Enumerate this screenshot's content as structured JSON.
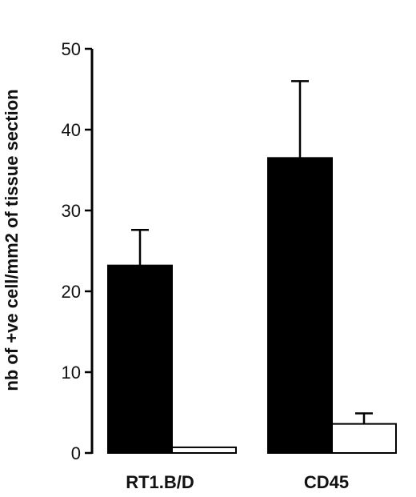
{
  "chart_data": {
    "type": "bar",
    "ylabel": "nb of +ve cell/mm2 of tissue section",
    "ylim": [
      0,
      50
    ],
    "yticks": [
      0,
      10,
      20,
      30,
      40,
      50
    ],
    "categories": [
      "RT1.B/D",
      "CD45"
    ],
    "series": [
      {
        "values": [
          23.2,
          36.5
        ],
        "errors": [
          4.4,
          9.5
        ],
        "color": "#000000"
      },
      {
        "values": [
          0.7,
          3.6
        ],
        "errors": [
          0,
          1.3
        ],
        "color": "#ffffff"
      }
    ],
    "error_bars": "upper",
    "grid": false
  }
}
